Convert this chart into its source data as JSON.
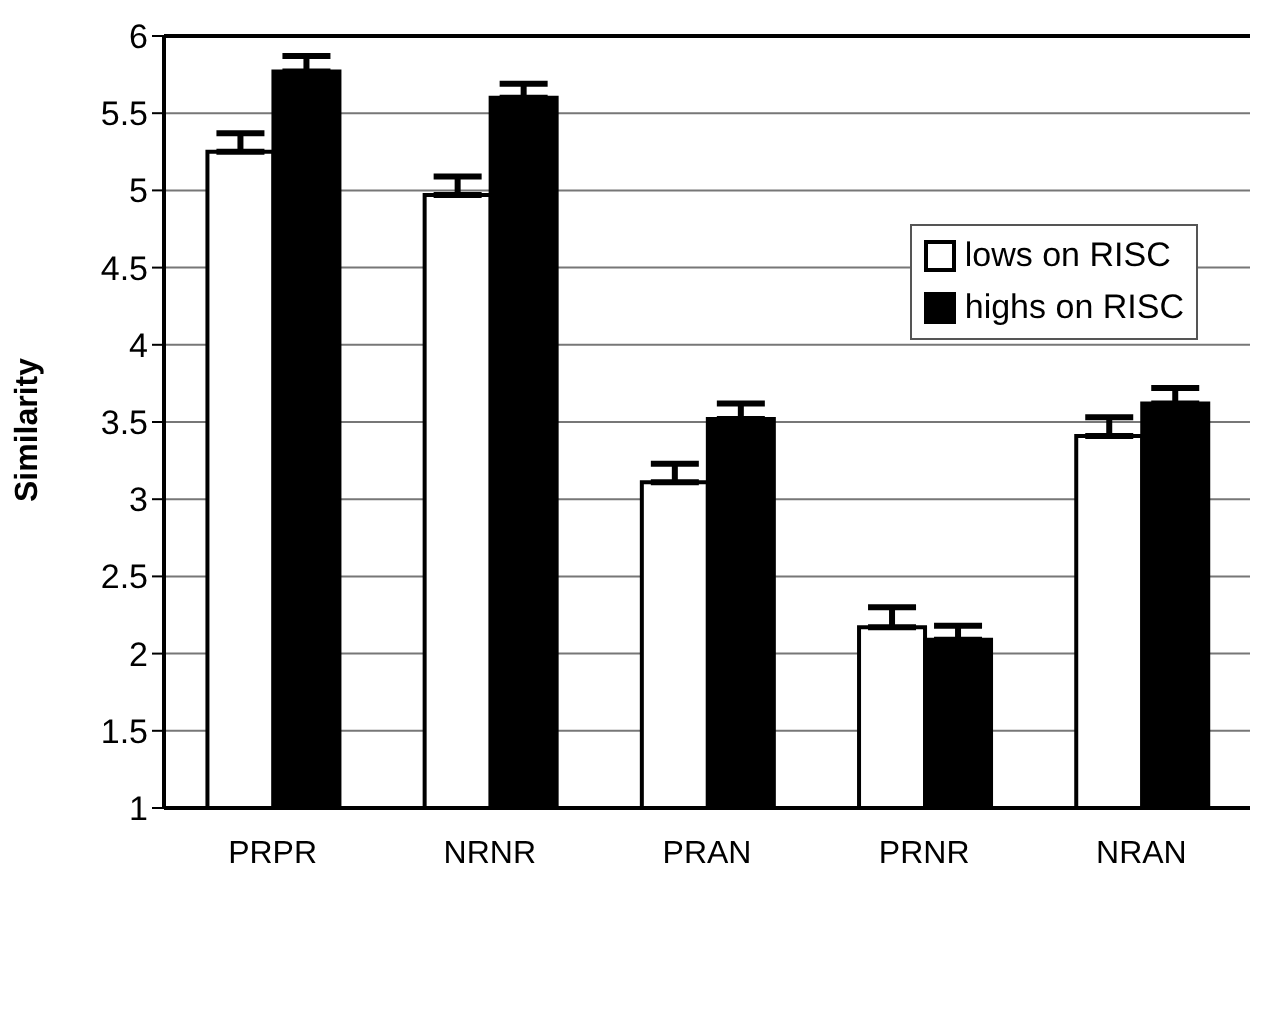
{
  "chart_data": {
    "type": "bar",
    "ylabel": "Similarity",
    "categories": [
      "PRPR",
      "NRNR",
      "PRAN",
      "PRNR",
      "NRAN"
    ],
    "series": [
      {
        "name": "lows on RISC",
        "color": "#ffffff",
        "values": [
          5.25,
          4.97,
          3.11,
          2.17,
          3.41
        ],
        "errors": [
          0.12,
          0.12,
          0.12,
          0.13,
          0.12
        ]
      },
      {
        "name": "highs on RISC",
        "color": "#000000",
        "values": [
          5.77,
          5.6,
          3.52,
          2.09,
          3.62
        ],
        "errors": [
          0.1,
          0.09,
          0.1,
          0.09,
          0.1
        ]
      }
    ],
    "ylim": [
      1,
      6
    ],
    "yticks": [
      1,
      1.5,
      2,
      2.5,
      3,
      3.5,
      4,
      4.5,
      5,
      5.5,
      6
    ],
    "grid": "y",
    "legend": "top right"
  }
}
